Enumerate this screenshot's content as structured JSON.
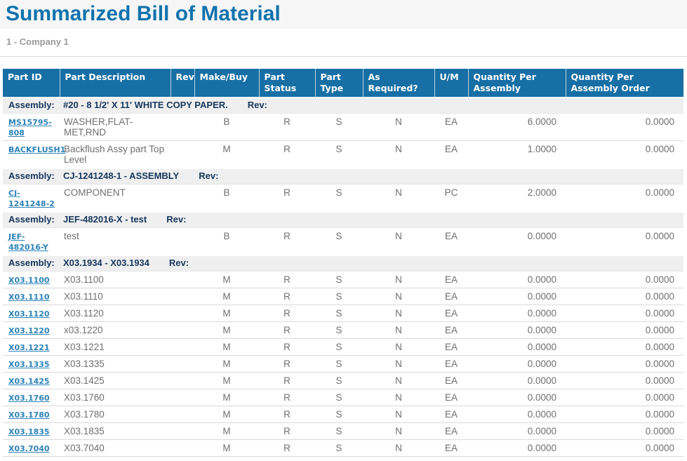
{
  "page": {
    "title": "Summarized Bill of Material",
    "subtitle": "1 - Company 1"
  },
  "colors": {
    "title_blue": "#1173ad",
    "header_bg": "#176fa5",
    "assembly_text": "#16365c",
    "link_blue": "#2c83b8",
    "body_text": "#6f6f6f"
  },
  "table": {
    "columns": [
      "Part ID",
      "Part Description",
      "Rev",
      "Make/Buy",
      "Part Status",
      "Part Type",
      "As Required?",
      "U/M",
      "Quantity Per Assembly",
      "Quantity Per Assembly Order"
    ],
    "groups": [
      {
        "assembly_label": "Assembly:",
        "assembly_name": "#20 - 8 1/2' X 11' WHITE COPY PAPER.",
        "rev_label": "Rev:",
        "rows": [
          {
            "part_id": "MS15795-808",
            "description": "WASHER,FLAT-MET,RND",
            "rev": "",
            "make_buy": "B",
            "part_status": "R",
            "part_type": "S",
            "as_required": "N",
            "um": "EA",
            "qty_assembly": "6.0000",
            "qty_assembly_order": "0.0000"
          },
          {
            "part_id": "BACKFLUSH1",
            "description": "Backflush Assy part Top Level",
            "rev": "",
            "make_buy": "M",
            "part_status": "R",
            "part_type": "S",
            "as_required": "N",
            "um": "EA",
            "qty_assembly": "1.0000",
            "qty_assembly_order": "0.0000"
          }
        ]
      },
      {
        "assembly_label": "Assembly:",
        "assembly_name": "CJ-1241248-1 - ASSEMBLY",
        "rev_label": "Rev:",
        "rows": [
          {
            "part_id": "CJ-1241248-2",
            "description": "COMPONENT",
            "rev": "",
            "make_buy": "B",
            "part_status": "R",
            "part_type": "S",
            "as_required": "N",
            "um": "PC",
            "qty_assembly": "2.0000",
            "qty_assembly_order": "0.0000"
          }
        ]
      },
      {
        "assembly_label": "Assembly:",
        "assembly_name": "JEF-482016-X - test",
        "rev_label": "Rev:",
        "rows": [
          {
            "part_id": "JEF-482016-Y",
            "description": "test",
            "rev": "",
            "make_buy": "B",
            "part_status": "R",
            "part_type": "S",
            "as_required": "N",
            "um": "EA",
            "qty_assembly": "0.0000",
            "qty_assembly_order": "0.0000"
          }
        ]
      },
      {
        "assembly_label": "Assembly:",
        "assembly_name": "X03.1934 - X03.1934",
        "rev_label": "Rev:",
        "rows": [
          {
            "part_id": "X03.1100",
            "description": "X03.1100",
            "rev": "",
            "make_buy": "M",
            "part_status": "R",
            "part_type": "S",
            "as_required": "N",
            "um": "EA",
            "qty_assembly": "0.0000",
            "qty_assembly_order": "0.0000"
          },
          {
            "part_id": "X03.1110",
            "description": "X03.1110",
            "rev": "",
            "make_buy": "M",
            "part_status": "R",
            "part_type": "S",
            "as_required": "N",
            "um": "EA",
            "qty_assembly": "0.0000",
            "qty_assembly_order": "0.0000"
          },
          {
            "part_id": "X03.1120",
            "description": "X03.1120",
            "rev": "",
            "make_buy": "M",
            "part_status": "R",
            "part_type": "S",
            "as_required": "N",
            "um": "EA",
            "qty_assembly": "0.0000",
            "qty_assembly_order": "0.0000"
          },
          {
            "part_id": "X03.1220",
            "description": "x03.1220",
            "rev": "",
            "make_buy": "M",
            "part_status": "R",
            "part_type": "S",
            "as_required": "N",
            "um": "EA",
            "qty_assembly": "0.0000",
            "qty_assembly_order": "0.0000"
          },
          {
            "part_id": "X03.1221",
            "description": "X03.1221",
            "rev": "",
            "make_buy": "M",
            "part_status": "R",
            "part_type": "S",
            "as_required": "N",
            "um": "EA",
            "qty_assembly": "0.0000",
            "qty_assembly_order": "0.0000"
          },
          {
            "part_id": "X03.1335",
            "description": "X03.1335",
            "rev": "",
            "make_buy": "M",
            "part_status": "R",
            "part_type": "S",
            "as_required": "N",
            "um": "EA",
            "qty_assembly": "0.0000",
            "qty_assembly_order": "0.0000"
          },
          {
            "part_id": "X03.1425",
            "description": "X03.1425",
            "rev": "",
            "make_buy": "M",
            "part_status": "R",
            "part_type": "S",
            "as_required": "N",
            "um": "EA",
            "qty_assembly": "0.0000",
            "qty_assembly_order": "0.0000"
          },
          {
            "part_id": "X03.1760",
            "description": "X03.1760",
            "rev": "",
            "make_buy": "M",
            "part_status": "R",
            "part_type": "S",
            "as_required": "N",
            "um": "EA",
            "qty_assembly": "0.0000",
            "qty_assembly_order": "0.0000"
          },
          {
            "part_id": "X03.1780",
            "description": "X03.1780",
            "rev": "",
            "make_buy": "M",
            "part_status": "R",
            "part_type": "S",
            "as_required": "N",
            "um": "EA",
            "qty_assembly": "0.0000",
            "qty_assembly_order": "0.0000"
          },
          {
            "part_id": "X03.1835",
            "description": "X03.1835",
            "rev": "",
            "make_buy": "M",
            "part_status": "R",
            "part_type": "S",
            "as_required": "N",
            "um": "EA",
            "qty_assembly": "0.0000",
            "qty_assembly_order": "0.0000"
          },
          {
            "part_id": "X03.7040",
            "description": "X03.7040",
            "rev": "",
            "make_buy": "M",
            "part_status": "R",
            "part_type": "S",
            "as_required": "N",
            "um": "EA",
            "qty_assembly": "0.0000",
            "qty_assembly_order": "0.0000"
          }
        ]
      }
    ]
  }
}
